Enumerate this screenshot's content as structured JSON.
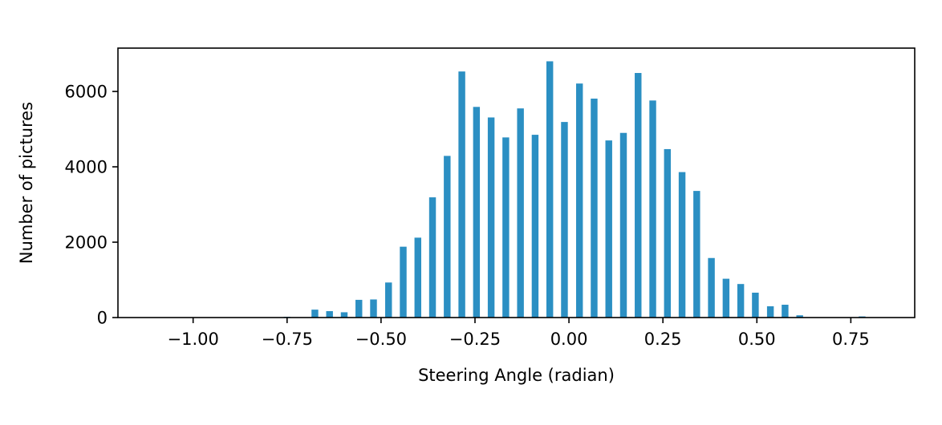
{
  "colors": {
    "bar": "#2b8fc3",
    "axis": "#000000",
    "background": "#ffffff"
  },
  "chart_data": {
    "type": "bar",
    "title": "",
    "xlabel": "Steering Angle (radian)",
    "ylabel": "Number of pictures",
    "xlim": [
      -1.2,
      0.92
    ],
    "ylim": [
      0,
      7150
    ],
    "bar_width": 0.018,
    "grid": false,
    "legend": "none",
    "x_ticks": [
      -1.0,
      -0.75,
      -0.5,
      -0.25,
      0.0,
      0.25,
      0.5,
      0.75
    ],
    "x_tick_labels": [
      "−1.00",
      "−0.75",
      "−0.50",
      "−0.25",
      "0.00",
      "0.25",
      "0.50",
      "0.75"
    ],
    "y_ticks": [
      0,
      2000,
      4000,
      6000
    ],
    "y_tick_labels": [
      "0",
      "2000",
      "4000",
      "6000"
    ],
    "bins": [
      {
        "x": -0.75,
        "y": 20
      },
      {
        "x": -0.676,
        "y": 210
      },
      {
        "x": -0.637,
        "y": 170
      },
      {
        "x": -0.598,
        "y": 140
      },
      {
        "x": -0.559,
        "y": 470
      },
      {
        "x": -0.52,
        "y": 480
      },
      {
        "x": -0.48,
        "y": 930
      },
      {
        "x": -0.441,
        "y": 1880
      },
      {
        "x": -0.402,
        "y": 2120
      },
      {
        "x": -0.363,
        "y": 3190
      },
      {
        "x": -0.324,
        "y": 4290
      },
      {
        "x": -0.285,
        "y": 6530
      },
      {
        "x": -0.246,
        "y": 5590
      },
      {
        "x": -0.207,
        "y": 5310
      },
      {
        "x": -0.168,
        "y": 4780
      },
      {
        "x": -0.129,
        "y": 5550
      },
      {
        "x": -0.09,
        "y": 4850
      },
      {
        "x": -0.051,
        "y": 6800
      },
      {
        "x": -0.012,
        "y": 5190
      },
      {
        "x": 0.028,
        "y": 6210
      },
      {
        "x": 0.067,
        "y": 5810
      },
      {
        "x": 0.106,
        "y": 4700
      },
      {
        "x": 0.145,
        "y": 4900
      },
      {
        "x": 0.184,
        "y": 6490
      },
      {
        "x": 0.223,
        "y": 5760
      },
      {
        "x": 0.262,
        "y": 4470
      },
      {
        "x": 0.301,
        "y": 3860
      },
      {
        "x": 0.34,
        "y": 3360
      },
      {
        "x": 0.379,
        "y": 1580
      },
      {
        "x": 0.418,
        "y": 1030
      },
      {
        "x": 0.457,
        "y": 890
      },
      {
        "x": 0.496,
        "y": 660
      },
      {
        "x": 0.536,
        "y": 300
      },
      {
        "x": 0.575,
        "y": 340
      },
      {
        "x": 0.614,
        "y": 60
      },
      {
        "x": 0.78,
        "y": 30
      }
    ]
  }
}
